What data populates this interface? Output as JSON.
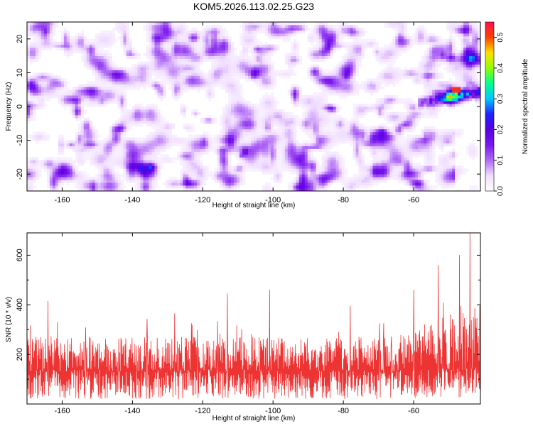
{
  "title": "KOM5.2026.113.02.25.G23",
  "chart_data": [
    {
      "type": "heatmap",
      "xlabel": "Height of straight line (km)",
      "ylabel": "Frequency (Hz)",
      "xlim": [
        -170,
        -41
      ],
      "ylim": [
        -25,
        25
      ],
      "xticks": [
        -160,
        -140,
        -120,
        -100,
        -80,
        -60
      ],
      "yticks": [
        -20,
        -10,
        0,
        10,
        20
      ],
      "colorbar": {
        "label": "Normalized spectral amplitude",
        "range": [
          0.0,
          0.55
        ],
        "ticks": [
          0.0,
          0.1,
          0.2,
          0.3,
          0.4,
          0.5
        ],
        "tick_labels": [
          "0.0",
          "0.1",
          "0.2",
          "0.3",
          "0.4",
          "0.5"
        ],
        "colormap": [
          "#ffffff",
          "#f0ddff",
          "#b06af5",
          "#7a18ee",
          "#5a00e0",
          "#2020ff",
          "#00c8ff",
          "#00ff90",
          "#90ff00",
          "#ffe000",
          "#ff4000",
          "#ff1050"
        ]
      },
      "noise_floor_amplitude": [
        0.02,
        0.09
      ],
      "signal": {
        "x_range": [
          -59,
          -41
        ],
        "freq_center_start": 1,
        "freq_center_end": 4.5,
        "peak_x": -48,
        "peak_freq": 5,
        "peak_amplitude": 0.52
      }
    },
    {
      "type": "line",
      "xlabel": "Height of straight line (km)",
      "ylabel": "SNR (10 * v/v)",
      "xlim": [
        -170,
        -41
      ],
      "ylim": [
        0,
        690
      ],
      "xticks": [
        -160,
        -140,
        -120,
        -100,
        -80,
        -60
      ],
      "yticks": [
        200,
        400,
        600
      ],
      "line_color": "#ee3333",
      "series": [
        {
          "name": "SNR",
          "x_range": [
            -170,
            -41
          ],
          "samples": 1300,
          "baseline": 130,
          "typical_spread": [
            60,
            270
          ],
          "late_rise_from_x": -65,
          "max_value": 690,
          "max_x": -44
        }
      ],
      "notable_peaks": [
        {
          "x": -164,
          "y": 415
        },
        {
          "x": -128,
          "y": 365
        },
        {
          "x": -113,
          "y": 445
        },
        {
          "x": -101,
          "y": 460
        },
        {
          "x": -78,
          "y": 395
        },
        {
          "x": -60,
          "y": 460
        },
        {
          "x": -53,
          "y": 560
        },
        {
          "x": -47,
          "y": 600
        },
        {
          "x": -44,
          "y": 690
        }
      ]
    }
  ]
}
